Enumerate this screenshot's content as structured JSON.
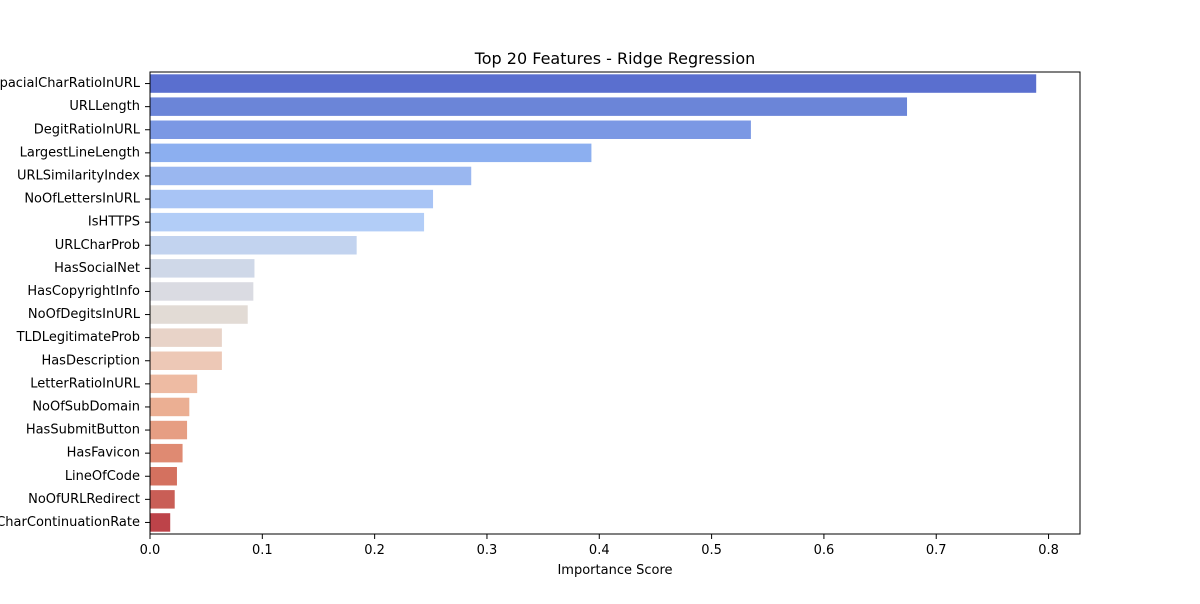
{
  "chart_data": {
    "type": "bar",
    "orientation": "horizontal",
    "title": "Top 20 Features - Ridge Regression",
    "xlabel": "Importance Score",
    "ylabel": "",
    "xlim": [
      0,
      0.828
    ],
    "xticks": [
      0.0,
      0.1,
      0.2,
      0.3,
      0.4,
      0.5,
      0.6,
      0.7,
      0.8
    ],
    "xtick_labels": [
      "0.0",
      "0.1",
      "0.2",
      "0.3",
      "0.4",
      "0.5",
      "0.6",
      "0.7",
      "0.8"
    ],
    "grid": false,
    "colormap": "coolwarm",
    "categories": [
      "SpacialCharRatioInURL",
      "URLLength",
      "DegitRatioInURL",
      "LargestLineLength",
      "URLSimilarityIndex",
      "NoOfLettersInURL",
      "IsHTTPS",
      "URLCharProb",
      "HasSocialNet",
      "HasCopyrightInfo",
      "NoOfDegitsInURL",
      "TLDLegitimateProb",
      "HasDescription",
      "LetterRatioInURL",
      "NoOfSubDomain",
      "HasSubmitButton",
      "HasFavicon",
      "LineOfCode",
      "NoOfURLRedirect",
      "CharContinuationRate"
    ],
    "values": [
      0.789,
      0.674,
      0.535,
      0.393,
      0.286,
      0.252,
      0.244,
      0.184,
      0.093,
      0.092,
      0.087,
      0.064,
      0.064,
      0.042,
      0.035,
      0.033,
      0.029,
      0.024,
      0.022,
      0.018
    ],
    "colors": [
      "#5a6fcf",
      "#6b85d8",
      "#7b98e4",
      "#8caff0",
      "#9ab7f0",
      "#a8c4f5",
      "#b2cdf7",
      "#c2d3ef",
      "#cfd8e8",
      "#dadbe2",
      "#e2dbd5",
      "#e8d3c8",
      "#edc8b6",
      "#eebba3",
      "#ebaf93",
      "#e69e83",
      "#df8a72",
      "#d4715f",
      "#c95e56",
      "#bd4349"
    ]
  }
}
